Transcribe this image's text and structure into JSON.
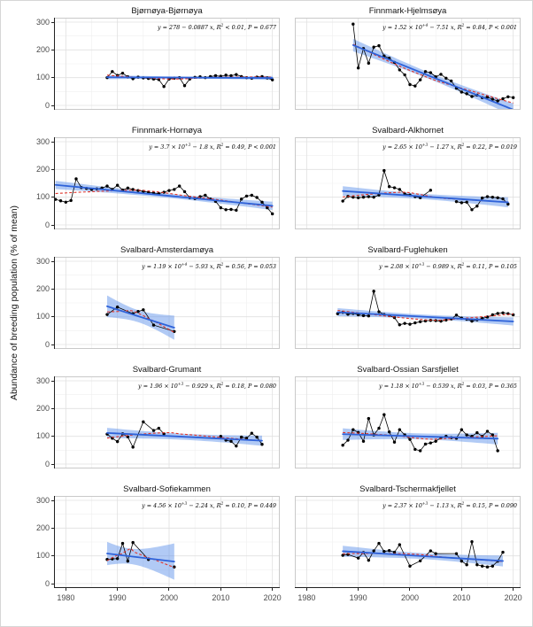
{
  "figure": {
    "y_axis_label": "Abundance of breeding population (% of mean)",
    "x_tick_labels": [
      "1980",
      "1990",
      "2000",
      "2010",
      "2020"
    ],
    "x_tick_years": [
      1980,
      1990,
      2000,
      2010,
      2020
    ],
    "y_tick_labels": [
      "300",
      "200",
      "100",
      "0"
    ],
    "y_tick_values": [
      300,
      200,
      100,
      0
    ],
    "colors": {
      "points": "#000000",
      "series_line": "#000000",
      "trend_line": "#2e62d9",
      "confidence_band": "rgba(100,150,235,0.5)",
      "loess_line": "#e0352b",
      "grid_major": "#e0e0e0",
      "grid_minor": "#efefef",
      "panel_border": "#c9c9c9",
      "axis_line": "#222222",
      "tick_text": "#4a4a4a",
      "title_text": "#141414"
    }
  },
  "chart_data": [
    {
      "type": "scatter",
      "title": "Bjørnøya-Bjørnøya",
      "equation": "y = 278 − 0.0887 x, R^{2} < 0.01, P = 0.677",
      "trend_slope": -0.0887,
      "x": [
        1988,
        1989,
        1990,
        1991,
        1992,
        1993,
        1994,
        1995,
        1996,
        1997,
        1998,
        1999,
        2000,
        2001,
        2002,
        2003,
        2004,
        2005,
        2006,
        2007,
        2008,
        2009,
        2010,
        2011,
        2012,
        2013,
        2014,
        2015,
        2016,
        2017,
        2018,
        2019,
        2020
      ],
      "y": [
        100,
        122,
        108,
        116,
        103,
        96,
        102,
        99,
        97,
        95,
        93,
        68,
        95,
        98,
        100,
        71,
        95,
        101,
        103,
        100,
        104,
        107,
        105,
        109,
        107,
        111,
        104,
        100,
        98,
        102,
        104,
        99,
        92
      ]
    },
    {
      "type": "scatter",
      "title": "Finnmark-Hjelmsøya",
      "equation": "y = 1.52 × 10^{+4} − 7.51 x, R^{2} = 0.84, P < 0.001",
      "trend_slope": -7.51,
      "x": [
        1989,
        1990,
        1991,
        1992,
        1993,
        1994,
        1995,
        1996,
        1997,
        1998,
        1999,
        2000,
        2001,
        2002,
        2003,
        2004,
        2005,
        2006,
        2007,
        2008,
        2009,
        2010,
        2011,
        2012,
        2013,
        2014,
        2015,
        2016,
        2017,
        2018,
        2019,
        2020
      ],
      "y": [
        293,
        135,
        205,
        152,
        210,
        215,
        178,
        170,
        155,
        128,
        110,
        75,
        70,
        92,
        122,
        118,
        103,
        112,
        98,
        88,
        62,
        48,
        42,
        32,
        37,
        28,
        30,
        22,
        16,
        24,
        31,
        28
      ]
    },
    {
      "type": "scatter",
      "title": "Finnmark-Hornøya",
      "equation": "y = 3.7 × 10^{+3} − 1.8 x, R^{2} = 0.49, P < 0.001",
      "trend_slope": -1.8,
      "x": [
        1978,
        1979,
        1980,
        1981,
        1982,
        1983,
        1984,
        1985,
        1986,
        1987,
        1988,
        1989,
        1990,
        1991,
        1992,
        1993,
        1994,
        1995,
        1996,
        1997,
        1998,
        1999,
        2000,
        2001,
        2002,
        2003,
        2004,
        2005,
        2006,
        2007,
        2008,
        2009,
        2010,
        2011,
        2012,
        2013,
        2014,
        2015,
        2016,
        2017,
        2018,
        2019,
        2020
      ],
      "y": [
        92,
        87,
        82,
        88,
        166,
        135,
        132,
        128,
        130,
        133,
        140,
        128,
        143,
        126,
        133,
        128,
        124,
        121,
        118,
        115,
        113,
        118,
        124,
        128,
        140,
        120,
        98,
        95,
        102,
        107,
        93,
        85,
        62,
        55,
        56,
        53,
        93,
        104,
        107,
        99,
        82,
        62,
        40
      ]
    },
    {
      "type": "scatter",
      "title": "Svalbard-Alkhornet",
      "equation": "y = 2.65 × 10^{+3} − 1.27 x, R^{2} = 0.22, P = 0.019",
      "trend_slope": -1.27,
      "x": [
        1987,
        1988,
        1989,
        1990,
        1991,
        1992,
        1993,
        1994,
        1995,
        1996,
        1997,
        1998,
        1999,
        2000,
        2001,
        2002,
        2004,
        2009,
        2010,
        2011,
        2012,
        2013,
        2014,
        2015,
        2016,
        2017,
        2018,
        2019
      ],
      "y": [
        86,
        103,
        100,
        98,
        100,
        102,
        100,
        108,
        196,
        138,
        134,
        128,
        112,
        108,
        102,
        98,
        125,
        84,
        80,
        82,
        55,
        68,
        97,
        102,
        100,
        98,
        94,
        75
      ]
    },
    {
      "type": "scatter",
      "title": "Svalbard-Amsterdamøya",
      "equation": "y = 1.19 × 10^{+4} − 5.93 x, R^{2} = 0.56, P = 0.053",
      "trend_slope": -5.93,
      "x": [
        1988,
        1990,
        1993,
        1994,
        1995,
        1997,
        2001
      ],
      "y": [
        108,
        135,
        111,
        119,
        125,
        70,
        47
      ]
    },
    {
      "type": "scatter",
      "title": "Svalbard-Fuglehuken",
      "equation": "y = 2.08 × 10^{+3} − 0.989 x, R^{2} = 0.11, P = 0.105",
      "trend_slope": -0.989,
      "x": [
        1986,
        1987,
        1988,
        1989,
        1990,
        1991,
        1992,
        1993,
        1994,
        1995,
        1996,
        1997,
        1998,
        1999,
        2000,
        2001,
        2002,
        2003,
        2004,
        2005,
        2006,
        2007,
        2008,
        2009,
        2010,
        2011,
        2012,
        2013,
        2014,
        2015,
        2016,
        2017,
        2018,
        2019,
        2020
      ],
      "y": [
        111,
        116,
        109,
        112,
        107,
        104,
        103,
        192,
        118,
        108,
        104,
        97,
        71,
        76,
        73,
        78,
        82,
        85,
        87,
        86,
        84,
        88,
        92,
        106,
        95,
        91,
        84,
        89,
        94,
        99,
        107,
        112,
        114,
        111,
        107
      ]
    },
    {
      "type": "scatter",
      "title": "Svalbard-Grumant",
      "equation": "y = 1.96 × 10^{+3} − 0.929 x, R^{2} = 0.18, P = 0.080",
      "trend_slope": -0.929,
      "x": [
        1988,
        1989,
        1990,
        1991,
        1992,
        1993,
        1995,
        1997,
        1998,
        1999,
        2010,
        2011,
        2012,
        2013,
        2014,
        2015,
        2016,
        2017,
        2018
      ],
      "y": [
        108,
        93,
        81,
        109,
        98,
        61,
        152,
        121,
        129,
        109,
        100,
        86,
        82,
        65,
        97,
        93,
        111,
        97,
        71
      ]
    },
    {
      "type": "scatter",
      "title": "Svalbard-Ossian Sarsfjellet",
      "equation": "y = 1.18 × 10^{+3} − 0.539 x, R^{2} = 0.03, P = 0.365",
      "trend_slope": -0.539,
      "x": [
        1987,
        1988,
        1989,
        1990,
        1991,
        1992,
        1993,
        1994,
        1995,
        1996,
        1997,
        1998,
        1999,
        2000,
        2001,
        2002,
        2003,
        2004,
        2005,
        2006,
        2007,
        2008,
        2009,
        2010,
        2011,
        2012,
        2013,
        2014,
        2015,
        2016,
        2017
      ],
      "y": [
        68,
        86,
        124,
        114,
        82,
        164,
        105,
        129,
        178,
        116,
        79,
        124,
        105,
        89,
        53,
        48,
        72,
        76,
        82,
        95,
        100,
        95,
        93,
        124,
        105,
        100,
        113,
        100,
        118,
        105,
        48
      ]
    },
    {
      "type": "scatter",
      "title": "Svalbard-Sofiekammen",
      "equation": "y = 4.56 × 10^{+3} − 2.24 x, R^{2} = 0.10, P = 0.449",
      "trend_slope": -2.24,
      "x": [
        1988,
        1989,
        1990,
        1991,
        1992,
        1993,
        1996,
        2001
      ],
      "y": [
        87,
        89,
        90,
        145,
        81,
        148,
        87,
        60
      ]
    },
    {
      "type": "scatter",
      "title": "Svalbard-Tschermakfjellet",
      "equation": "y = 2.37 × 10^{+3} − 1.13 x, R^{2} = 0.15, P = 0.090",
      "trend_slope": -1.13,
      "x": [
        1987,
        1988,
        1990,
        1991,
        1992,
        1993,
        1994,
        1995,
        1996,
        1997,
        1998,
        2000,
        2002,
        2004,
        2005,
        2009,
        2010,
        2011,
        2012,
        2013,
        2014,
        2015,
        2016,
        2017,
        2018
      ],
      "y": [
        102,
        105,
        92,
        112,
        84,
        118,
        145,
        116,
        119,
        113,
        140,
        63,
        82,
        118,
        108,
        108,
        81,
        68,
        151,
        68,
        63,
        60,
        63,
        81,
        113
      ]
    }
  ]
}
